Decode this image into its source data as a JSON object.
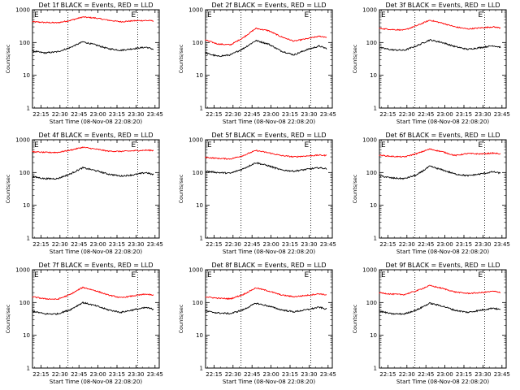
{
  "ylabel": "Counts/sec",
  "xlabel": "Start Time (08-Nov-08 22:08:20)",
  "x_ticks": [
    "22:15",
    "22:30",
    "22:45",
    "23:00",
    "23:15",
    "23:30",
    "23:45"
  ],
  "y_ticks": [
    "1",
    "10",
    "100",
    "1000"
  ],
  "ylim": [
    1,
    1000
  ],
  "y_scale": "log",
  "series_colors": {
    "events": "#000000",
    "lld": "#ff0000"
  },
  "markers": {
    "start_label": "E",
    "end_label": "E"
  },
  "chart_data": [
    {
      "type": "line",
      "title": "Det 1f BLACK = Events, RED = LLD",
      "x": [
        "22:08",
        "22:18",
        "22:28",
        "22:38",
        "22:48",
        "22:58",
        "23:08",
        "23:18",
        "23:28",
        "23:38",
        "23:44"
      ],
      "series": [
        {
          "values": [
            430,
            410,
            400,
            470,
            600,
            560,
            480,
            430,
            460,
            470,
            460
          ]
        },
        {
          "values": [
            55,
            48,
            52,
            70,
            105,
            85,
            65,
            58,
            65,
            72,
            62
          ]
        }
      ]
    },
    {
      "type": "line",
      "title": "Det 2f BLACK = Events, RED = LLD",
      "x": [
        "22:08",
        "22:18",
        "22:28",
        "22:38",
        "22:48",
        "22:58",
        "23:08",
        "23:18",
        "23:28",
        "23:38",
        "23:44"
      ],
      "series": [
        {
          "values": [
            120,
            90,
            85,
            140,
            270,
            230,
            150,
            110,
            130,
            155,
            145
          ]
        },
        {
          "values": [
            48,
            38,
            42,
            65,
            115,
            90,
            55,
            42,
            60,
            78,
            65
          ]
        }
      ]
    },
    {
      "type": "line",
      "title": "Det 3f BLACK = Events, RED = LLD",
      "x": [
        "22:08",
        "22:18",
        "22:28",
        "22:38",
        "22:48",
        "22:58",
        "23:08",
        "23:18",
        "23:28",
        "23:38",
        "23:44"
      ],
      "series": [
        {
          "values": [
            270,
            250,
            240,
            330,
            480,
            390,
            300,
            260,
            280,
            300,
            280
          ]
        },
        {
          "values": [
            70,
            60,
            58,
            80,
            120,
            100,
            75,
            62,
            70,
            80,
            72
          ]
        }
      ]
    },
    {
      "type": "line",
      "title": "Det 4f BLACK = Events, RED = LLD",
      "x": [
        "22:08",
        "22:18",
        "22:28",
        "22:38",
        "22:48",
        "22:58",
        "23:08",
        "23:18",
        "23:28",
        "23:38",
        "23:44"
      ],
      "series": [
        {
          "values": [
            430,
            410,
            410,
            480,
            590,
            520,
            450,
            440,
            460,
            480,
            470
          ]
        },
        {
          "values": [
            75,
            65,
            65,
            90,
            140,
            115,
            90,
            78,
            85,
            100,
            85
          ]
        }
      ]
    },
    {
      "type": "line",
      "title": "Det 5f BLACK = Events, RED = LLD",
      "x": [
        "22:08",
        "22:18",
        "22:28",
        "22:38",
        "22:48",
        "22:58",
        "23:08",
        "23:18",
        "23:28",
        "23:38",
        "23:44"
      ],
      "series": [
        {
          "values": [
            290,
            270,
            260,
            330,
            470,
            400,
            330,
            300,
            320,
            340,
            330
          ]
        },
        {
          "values": [
            110,
            100,
            95,
            130,
            200,
            160,
            120,
            110,
            125,
            140,
            130
          ]
        }
      ]
    },
    {
      "type": "line",
      "title": "Det 6f BLACK = Events, RED = LLD",
      "x": [
        "22:08",
        "22:18",
        "22:28",
        "22:38",
        "22:48",
        "22:58",
        "23:08",
        "23:18",
        "23:28",
        "23:38",
        "23:44"
      ],
      "series": [
        {
          "values": [
            340,
            310,
            300,
            380,
            520,
            430,
            330,
            380,
            370,
            390,
            370
          ]
        },
        {
          "values": [
            80,
            68,
            65,
            85,
            155,
            120,
            90,
            80,
            90,
            105,
            95
          ]
        }
      ]
    },
    {
      "type": "line",
      "title": "Det 7f BLACK = Events, RED = LLD",
      "x": [
        "22:08",
        "22:18",
        "22:28",
        "22:38",
        "22:48",
        "22:58",
        "23:08",
        "23:18",
        "23:28",
        "23:38",
        "23:44"
      ],
      "series": [
        {
          "values": [
            150,
            130,
            125,
            175,
            290,
            230,
            170,
            140,
            160,
            180,
            165
          ]
        },
        {
          "values": [
            55,
            45,
            45,
            60,
            100,
            80,
            60,
            50,
            60,
            70,
            62
          ]
        }
      ]
    },
    {
      "type": "line",
      "title": "Det 8f BLACK = Events, RED = LLD",
      "x": [
        "22:08",
        "22:18",
        "22:28",
        "22:38",
        "22:48",
        "22:58",
        "23:08",
        "23:18",
        "23:28",
        "23:38",
        "23:44"
      ],
      "series": [
        {
          "values": [
            150,
            135,
            130,
            175,
            280,
            225,
            170,
            150,
            165,
            185,
            170
          ]
        },
        {
          "values": [
            55,
            48,
            46,
            60,
            95,
            78,
            60,
            52,
            60,
            72,
            62
          ]
        }
      ]
    },
    {
      "type": "line",
      "title": "Det 9f BLACK = Events, RED = LLD",
      "x": [
        "22:08",
        "22:18",
        "22:28",
        "22:38",
        "22:48",
        "22:58",
        "23:08",
        "23:18",
        "23:28",
        "23:38",
        "23:44"
      ],
      "series": [
        {
          "values": [
            200,
            180,
            175,
            230,
            330,
            270,
            210,
            190,
            200,
            220,
            205
          ]
        },
        {
          "values": [
            55,
            45,
            45,
            60,
            95,
            78,
            58,
            50,
            58,
            68,
            60
          ]
        }
      ]
    }
  ]
}
